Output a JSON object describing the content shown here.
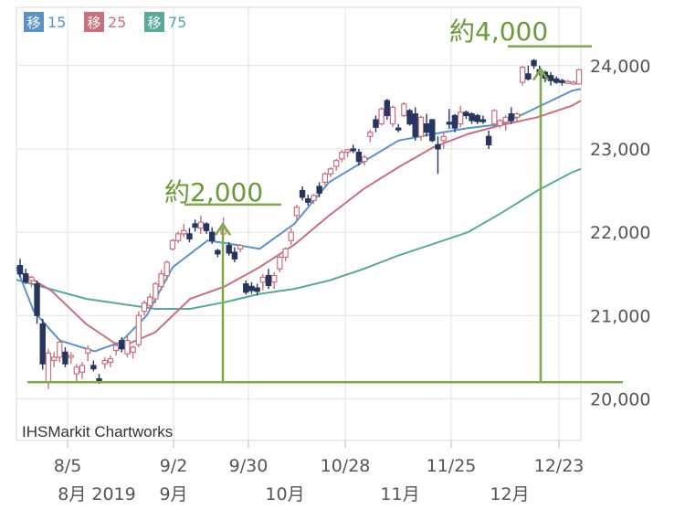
{
  "chart_data": {
    "type": "candlestick",
    "source_label": "IHSMarkit Chartworks",
    "ylim": [
      19500,
      24700
    ],
    "y_ticks": [
      20000,
      21000,
      22000,
      23000,
      24000
    ],
    "y_tick_labels": [
      "20,000",
      "21,000",
      "22,000",
      "23,000",
      "24,000"
    ],
    "x_tick_labels": [
      "8/5",
      "9/2",
      "9/30",
      "10/28",
      "11/25",
      "12/23"
    ],
    "month_labels": [
      "8月 2019",
      "9月",
      "10月",
      "11月",
      "12月"
    ],
    "legend": [
      {
        "label": "移",
        "period": "15",
        "color": "#5b93c7"
      },
      {
        "label": "移",
        "period": "25",
        "color": "#c8707d"
      },
      {
        "label": "移",
        "period": "75",
        "color": "#5aa898"
      }
    ],
    "annotations": [
      {
        "text": "約2,000",
        "from": 20200,
        "to": 22200
      },
      {
        "text": "約4,000",
        "from": 20200,
        "to": 24100
      }
    ],
    "baseline_level": 20200,
    "candles": [
      [
        21600,
        21680,
        21460,
        21500
      ],
      [
        21500,
        21560,
        21380,
        21400
      ],
      [
        21420,
        21480,
        21340,
        21460
      ],
      [
        21380,
        21420,
        20900,
        21000
      ],
      [
        20900,
        20960,
        20350,
        20420
      ],
      [
        20200,
        20600,
        20120,
        20550
      ],
      [
        20460,
        20560,
        20380,
        20500
      ],
      [
        20500,
        20720,
        20440,
        20680
      ],
      [
        20560,
        20620,
        20380,
        20420
      ],
      [
        20500,
        20560,
        20420,
        20520
      ],
      [
        20300,
        20420,
        20200,
        20380
      ],
      [
        20320,
        20440,
        20240,
        20400
      ],
      [
        20550,
        20640,
        20450,
        20600
      ],
      [
        20400,
        20460,
        20330,
        20360
      ],
      [
        20240,
        20300,
        20180,
        20220
      ],
      [
        20420,
        20500,
        20360,
        20460
      ],
      [
        20440,
        20520,
        20380,
        20480
      ],
      [
        20580,
        20680,
        20520,
        20640
      ],
      [
        20700,
        20740,
        20560,
        20600
      ],
      [
        20540,
        20760,
        20500,
        20700
      ],
      [
        20560,
        20640,
        20480,
        20620
      ],
      [
        20650,
        21050,
        20620,
        21000
      ],
      [
        21050,
        21180,
        21000,
        21150
      ],
      [
        21120,
        21260,
        21060,
        21220
      ],
      [
        21200,
        21400,
        21150,
        21380
      ],
      [
        21350,
        21550,
        21300,
        21500
      ],
      [
        21480,
        21660,
        21420,
        21640
      ],
      [
        21800,
        21920,
        21780,
        21900
      ],
      [
        21900,
        22010,
        21870,
        21980
      ],
      [
        21980,
        22100,
        21940,
        22020
      ],
      [
        21980,
        22050,
        21880,
        21920
      ],
      [
        22100,
        22150,
        22010,
        22060
      ],
      [
        22050,
        22200,
        21980,
        22120
      ],
      [
        22100,
        22120,
        21980,
        22020
      ],
      [
        22000,
        22060,
        21860,
        21900
      ],
      [
        21780,
        21800,
        21700,
        21740
      ],
      [
        21980,
        22180,
        21900,
        22040
      ],
      [
        21840,
        21880,
        21720,
        21750
      ],
      [
        21760,
        21820,
        21640,
        21680
      ],
      [
        21800,
        21860,
        21760,
        21840
      ],
      [
        21380,
        21420,
        21250,
        21280
      ],
      [
        21350,
        21400,
        21260,
        21300
      ],
      [
        21330,
        21380,
        21240,
        21290
      ],
      [
        21400,
        21500,
        21300,
        21460
      ],
      [
        21480,
        21560,
        21320,
        21360
      ],
      [
        21400,
        21520,
        21320,
        21480
      ],
      [
        21560,
        21720,
        21520,
        21700
      ],
      [
        21700,
        21820,
        21650,
        21800
      ],
      [
        21900,
        22050,
        21850,
        22000
      ],
      [
        22200,
        22330,
        22150,
        22300
      ],
      [
        22500,
        22550,
        22380,
        22420
      ],
      [
        22400,
        22450,
        22320,
        22360
      ],
      [
        22380,
        22460,
        22340,
        22440
      ],
      [
        22550,
        22600,
        22420,
        22470
      ],
      [
        22600,
        22720,
        22560,
        22700
      ],
      [
        22700,
        22780,
        22660,
        22760
      ],
      [
        22790,
        22880,
        22740,
        22860
      ],
      [
        22880,
        22990,
        22840,
        22960
      ],
      [
        22960,
        23000,
        22900,
        22990
      ],
      [
        23000,
        23050,
        22950,
        22980
      ],
      [
        22960,
        23000,
        22800,
        22850
      ],
      [
        22850,
        22930,
        22800,
        22900
      ],
      [
        23150,
        23230,
        23080,
        23200
      ],
      [
        23350,
        23400,
        23200,
        23260
      ],
      [
        23300,
        23500,
        23280,
        23480
      ],
      [
        23580,
        23600,
        23350,
        23400
      ],
      [
        23300,
        23520,
        23260,
        23500
      ],
      [
        23250,
        23300,
        23200,
        23240
      ],
      [
        23400,
        23560,
        23380,
        23540
      ],
      [
        23460,
        23480,
        23280,
        23300
      ],
      [
        23420,
        23500,
        23100,
        23150
      ],
      [
        23150,
        23400,
        23100,
        23380
      ],
      [
        23300,
        23420,
        23150,
        23200
      ],
      [
        23350,
        23360,
        23080,
        23100
      ],
      [
        23050,
        23150,
        22700,
        23000
      ],
      [
        23100,
        23200,
        23000,
        23150
      ],
      [
        23320,
        23480,
        23240,
        23300
      ],
      [
        23400,
        23420,
        23200,
        23250
      ],
      [
        23300,
        23520,
        23260,
        23440
      ],
      [
        23440,
        23460,
        23360,
        23400
      ],
      [
        23420,
        23440,
        23300,
        23340
      ],
      [
        23400,
        23420,
        23300,
        23330
      ],
      [
        23350,
        23400,
        23300,
        23340
      ],
      [
        23150,
        23220,
        23000,
        23050
      ],
      [
        23300,
        23480,
        23250,
        23460
      ],
      [
        23280,
        23360,
        23250,
        23340
      ],
      [
        23320,
        23400,
        23220,
        23380
      ],
      [
        23420,
        23500,
        23300,
        23340
      ],
      [
        23380,
        23440,
        23320,
        23420
      ],
      [
        23800,
        24000,
        23760,
        23980
      ],
      [
        23900,
        24000,
        23820,
        23840
      ],
      [
        24060,
        24080,
        23960,
        24000
      ],
      [
        23950,
        24000,
        23880,
        23920
      ],
      [
        23920,
        23940,
        23800,
        23850
      ],
      [
        23880,
        23920,
        23760,
        23820
      ],
      [
        23840,
        23870,
        23780,
        23800
      ],
      [
        23820,
        23840,
        23760,
        23800
      ],
      [
        23800,
        23830,
        23780,
        23810
      ],
      [
        23790,
        23820,
        23770,
        23800
      ],
      [
        23780,
        23960,
        23780,
        23950
      ]
    ],
    "ma15": [
      [
        0,
        21580
      ],
      [
        10,
        21050
      ],
      [
        25,
        20700
      ],
      [
        45,
        20570
      ],
      [
        60,
        20680
      ],
      [
        75,
        21000
      ],
      [
        90,
        21580
      ],
      [
        110,
        21900
      ],
      [
        120,
        21870
      ],
      [
        140,
        21800
      ],
      [
        160,
        22100
      ],
      [
        180,
        22600
      ],
      [
        200,
        22850
      ],
      [
        220,
        23100
      ],
      [
        240,
        23180
      ],
      [
        260,
        23250
      ],
      [
        280,
        23300
      ],
      [
        300,
        23500
      ],
      [
        320,
        23700
      ],
      [
        325,
        23720
      ]
    ],
    "ma25": [
      [
        0,
        21550
      ],
      [
        20,
        21300
      ],
      [
        40,
        20900
      ],
      [
        60,
        20620
      ],
      [
        80,
        20800
      ],
      [
        100,
        21200
      ],
      [
        120,
        21350
      ],
      [
        140,
        21580
      ],
      [
        160,
        21850
      ],
      [
        180,
        22200
      ],
      [
        200,
        22520
      ],
      [
        220,
        22780
      ],
      [
        240,
        23020
      ],
      [
        260,
        23180
      ],
      [
        280,
        23290
      ],
      [
        300,
        23380
      ],
      [
        320,
        23520
      ],
      [
        325,
        23580
      ]
    ],
    "ma75": [
      [
        0,
        21430
      ],
      [
        40,
        21200
      ],
      [
        80,
        21080
      ],
      [
        100,
        21080
      ],
      [
        120,
        21160
      ],
      [
        140,
        21260
      ],
      [
        160,
        21320
      ],
      [
        180,
        21420
      ],
      [
        200,
        21560
      ],
      [
        220,
        21720
      ],
      [
        240,
        21860
      ],
      [
        260,
        22000
      ],
      [
        280,
        22240
      ],
      [
        300,
        22500
      ],
      [
        320,
        22720
      ],
      [
        325,
        22760
      ]
    ]
  }
}
